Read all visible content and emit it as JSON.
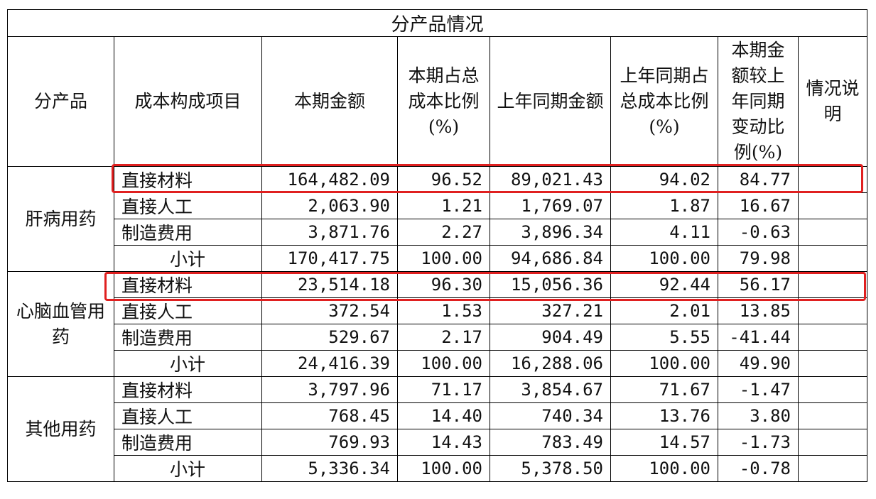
{
  "title": "分产品情况",
  "headers": [
    "分产品",
    "成本构成项目",
    "本期金额",
    "本期占总成本比例(%)",
    "上年同期金额",
    "上年同期占总成本比例(%)",
    "本期金额较上年同期变动比例(%)",
    "情况说明"
  ],
  "groups": [
    {
      "name": "肝病用药",
      "rows": [
        {
          "item": "直接材料",
          "cur": "164,482.09",
          "cur_pct": "96.52",
          "prev": "89,021.43",
          "prev_pct": "94.02",
          "chg": "84.77",
          "note": ""
        },
        {
          "item": "直接人工",
          "cur": "2,063.90",
          "cur_pct": "1.21",
          "prev": "1,769.07",
          "prev_pct": "1.87",
          "chg": "16.67",
          "note": ""
        },
        {
          "item": "制造费用",
          "cur": "3,871.76",
          "cur_pct": "2.27",
          "prev": "3,896.34",
          "prev_pct": "4.11",
          "chg": "-0.63",
          "note": ""
        },
        {
          "item": "小计",
          "cur": "170,417.75",
          "cur_pct": "100.00",
          "prev": "94,686.84",
          "prev_pct": "100.00",
          "chg": "79.98",
          "note": ""
        }
      ]
    },
    {
      "name": "心脑血管用药",
      "rows": [
        {
          "item": "直接材料",
          "cur": "23,514.18",
          "cur_pct": "96.30",
          "prev": "15,056.36",
          "prev_pct": "92.44",
          "chg": "56.17",
          "note": ""
        },
        {
          "item": "直接人工",
          "cur": "372.54",
          "cur_pct": "1.53",
          "prev": "327.21",
          "prev_pct": "2.01",
          "chg": "13.85",
          "note": ""
        },
        {
          "item": "制造费用",
          "cur": "529.67",
          "cur_pct": "2.17",
          "prev": "904.49",
          "prev_pct": "5.55",
          "chg": "-41.44",
          "note": ""
        },
        {
          "item": "小计",
          "cur": "24,416.39",
          "cur_pct": "100.00",
          "prev": "16,288.06",
          "prev_pct": "100.00",
          "chg": "49.90",
          "note": ""
        }
      ]
    },
    {
      "name": "其他用药",
      "rows": [
        {
          "item": "直接材料",
          "cur": "3,797.96",
          "cur_pct": "71.17",
          "prev": "3,854.67",
          "prev_pct": "71.67",
          "chg": "-1.47",
          "note": ""
        },
        {
          "item": "直接人工",
          "cur": "768.45",
          "cur_pct": "14.40",
          "prev": "740.34",
          "prev_pct": "13.76",
          "chg": "3.80",
          "note": ""
        },
        {
          "item": "制造费用",
          "cur": "769.93",
          "cur_pct": "14.43",
          "prev": "783.49",
          "prev_pct": "14.57",
          "chg": "-1.73",
          "note": ""
        },
        {
          "item": "小计",
          "cur": "5,336.34",
          "cur_pct": "100.00",
          "prev": "5,378.50",
          "prev_pct": "100.00",
          "chg": "-0.78",
          "note": ""
        }
      ]
    }
  ],
  "highlight_color": "#e02020"
}
